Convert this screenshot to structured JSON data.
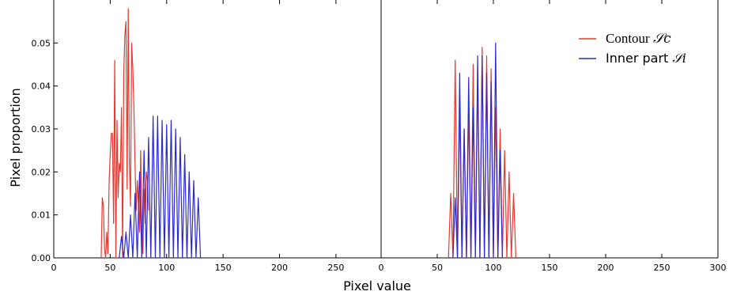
{
  "chart_data": [
    {
      "type": "line",
      "panel": "left",
      "xlim": [
        0,
        290
      ],
      "ylim": [
        0,
        0.06
      ],
      "xticks": [
        "0",
        "50",
        "100",
        "150",
        "200",
        "250"
      ],
      "yticks": [
        "0.00",
        "0.01",
        "0.02",
        "0.03",
        "0.04",
        "0.05"
      ],
      "ylabel": "Pixel proportion",
      "grid": false,
      "series": [
        {
          "name": "Contour 𝒮c",
          "color": "#e8382f",
          "x": [
            42,
            43,
            44,
            45,
            46,
            47,
            48,
            49,
            50,
            51,
            52,
            53,
            54,
            55,
            56,
            57,
            58,
            59,
            60,
            61,
            62,
            63,
            64,
            65,
            66,
            67,
            68,
            69,
            70,
            71,
            72,
            73,
            74,
            75,
            76,
            77,
            78,
            79,
            80,
            81,
            82,
            83,
            84
          ],
          "y": [
            0.0,
            0.014,
            0.012,
            0.002,
            0.0,
            0.006,
            0.001,
            0.017,
            0.024,
            0.029,
            0.029,
            0.008,
            0.046,
            0.0,
            0.032,
            0.014,
            0.022,
            0.02,
            0.035,
            0.0,
            0.043,
            0.052,
            0.055,
            0.016,
            0.058,
            0.022,
            0.012,
            0.05,
            0.044,
            0.035,
            0.022,
            0.011,
            0.018,
            0.013,
            0.006,
            0.025,
            0.005,
            0.001,
            0.016,
            0.008,
            0.02,
            0.018,
            0.011
          ]
        },
        {
          "name": "Inner part 𝒮i",
          "color": "#2a2ad4",
          "x": [
            58,
            60,
            62,
            64,
            66,
            68,
            70,
            72,
            74,
            76,
            78,
            80,
            82,
            84,
            86,
            88,
            90,
            92,
            94,
            96,
            98,
            100,
            102,
            104,
            106,
            108,
            110,
            112,
            114,
            116,
            118,
            120,
            122,
            124,
            126,
            128,
            130,
            132
          ],
          "y": [
            0.0,
            0.005,
            0.0,
            0.006,
            0.0,
            0.01,
            0.0,
            0.015,
            0.0,
            0.02,
            0.0,
            0.025,
            0.0,
            0.028,
            0.0,
            0.033,
            0.0,
            0.033,
            0.0,
            0.032,
            0.0,
            0.031,
            0.0,
            0.032,
            0.0,
            0.03,
            0.0,
            0.028,
            0.0,
            0.024,
            0.0,
            0.02,
            0.0,
            0.018,
            0.0,
            0.014,
            0.0,
            0.0
          ]
        }
      ]
    },
    {
      "type": "line",
      "panel": "right",
      "xlim": [
        0,
        300
      ],
      "ylim": [
        0,
        0.06
      ],
      "xticks": [
        "0",
        "50",
        "100",
        "150",
        "200",
        "250",
        "300"
      ],
      "xlabel": "Pixel value",
      "grid": false,
      "legend": {
        "placement": "top-right",
        "entries": [
          {
            "prefix": "Contour ",
            "symbol": "𝒮c",
            "color": "#e8382f"
          },
          {
            "prefix": "Inner part ",
            "symbol": "𝒮i",
            "color": "#2a2ad4"
          }
        ]
      },
      "series": [
        {
          "name": "Contour 𝒮c",
          "color": "#e8382f",
          "x": [
            60,
            62,
            64,
            66,
            68,
            70,
            72,
            74,
            76,
            78,
            80,
            82,
            84,
            86,
            88,
            90,
            92,
            94,
            96,
            98,
            100,
            102,
            104,
            106,
            108,
            110,
            112,
            114,
            116,
            118,
            120
          ],
          "y": [
            0.0,
            0.015,
            0.0,
            0.046,
            0.0,
            0.035,
            0.0,
            0.03,
            0.0,
            0.035,
            0.0,
            0.045,
            0.0,
            0.042,
            0.0,
            0.049,
            0.0,
            0.047,
            0.0,
            0.044,
            0.0,
            0.035,
            0.0,
            0.03,
            0.0,
            0.025,
            0.0,
            0.02,
            0.0,
            0.015,
            0.0
          ]
        },
        {
          "name": "Inner part 𝒮i",
          "color": "#2a2ad4",
          "x": [
            64,
            66,
            68,
            70,
            72,
            74,
            76,
            78,
            80,
            82,
            84,
            86,
            88,
            90,
            92,
            94,
            96,
            98,
            100,
            102,
            104,
            106,
            108
          ],
          "y": [
            0.0,
            0.014,
            0.0,
            0.043,
            0.0,
            0.03,
            0.0,
            0.042,
            0.0,
            0.035,
            0.0,
            0.047,
            0.0,
            0.047,
            0.0,
            0.043,
            0.0,
            0.041,
            0.0,
            0.05,
            0.0,
            0.025,
            0.0
          ]
        }
      ]
    }
  ]
}
